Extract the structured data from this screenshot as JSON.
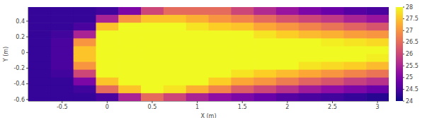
{
  "chart_data": {
    "type": "heatmap",
    "x_label": "X (m)",
    "y_label": "Y (m)",
    "color": "plasma",
    "xlim": [
      -0.875,
      3.125
    ],
    "ylim": [
      -0.62,
      0.58
    ],
    "xticks": [
      -0.5,
      0,
      0.5,
      1,
      1.5,
      2,
      2.5,
      3
    ],
    "yticks": [
      -0.6,
      -0.4,
      -0.2,
      0,
      0.2,
      0.4
    ],
    "x": [
      -0.75,
      -0.5,
      -0.25,
      0,
      0.25,
      0.5,
      0.75,
      1,
      1.25,
      1.5,
      1.75,
      2,
      2.25,
      2.5,
      2.75,
      3
    ],
    "y": [
      0.53,
      0.43,
      0.33,
      0.23,
      0.13,
      0.03,
      -0.07,
      -0.17,
      -0.27,
      -0.37,
      -0.47,
      -0.57
    ],
    "z": [
      [
        24.3,
        24.3,
        24.3,
        24.4,
        25,
        26,
        26.5,
        26.5,
        26.5,
        26,
        25.6,
        25.3,
        25,
        24.8,
        24.6,
        24.5
      ],
      [
        24.3,
        24.3,
        24.3,
        25.5,
        27,
        27.5,
        27.5,
        27.3,
        27,
        26.8,
        26.5,
        26.2,
        26,
        25.8,
        25.5,
        25.3
      ],
      [
        24.3,
        24.3,
        24.5,
        27.5,
        28,
        28,
        28,
        27.8,
        27.6,
        27.5,
        27.2,
        27,
        26.8,
        26.6,
        26.4,
        26.2
      ],
      [
        24.3,
        24.4,
        25.5,
        28,
        28,
        28,
        28,
        28,
        28,
        28,
        27.8,
        27.6,
        27.4,
        27.3,
        27.1,
        27
      ],
      [
        24.3,
        24.5,
        27,
        28,
        28,
        28,
        28,
        28,
        28,
        28,
        28,
        28,
        28,
        27.9,
        27.8,
        27.7
      ],
      [
        24.3,
        24.5,
        27.5,
        28,
        28,
        28,
        28,
        28,
        28,
        28,
        28,
        28,
        28,
        28,
        28,
        28
      ],
      [
        24.3,
        24.5,
        27.5,
        28,
        28,
        28,
        28,
        28,
        28,
        28,
        28,
        28,
        28,
        28,
        28,
        27.9
      ],
      [
        24.3,
        24.5,
        27,
        28,
        28,
        28,
        28,
        28,
        28,
        28,
        28,
        28,
        27.8,
        27.7,
        27.6,
        27.4
      ],
      [
        24.3,
        24.4,
        26,
        28,
        28,
        28,
        28,
        28,
        28,
        27.8,
        27.6,
        27.4,
        27.2,
        27,
        26.8,
        26.6
      ],
      [
        24.3,
        24.3,
        25,
        27.5,
        28,
        28,
        28,
        28,
        27.6,
        27.2,
        27,
        26.7,
        26.4,
        26.2,
        25.9,
        25.7
      ],
      [
        24.3,
        24.3,
        24.4,
        26.5,
        27.5,
        28,
        27.8,
        27.3,
        26.8,
        26.3,
        26,
        25.7,
        25.4,
        25.2,
        25,
        24.8
      ],
      [
        24.3,
        24.3,
        24.3,
        24.5,
        25.5,
        26.5,
        26,
        25.5,
        25.2,
        25,
        24.8,
        24.6,
        24.5,
        24.4,
        24.3,
        24.2
      ]
    ],
    "colorbar": {
      "range": [
        24,
        28
      ],
      "ticks": [
        24,
        24.5,
        25,
        25.5,
        26,
        26.5,
        27,
        27.5,
        28
      ]
    }
  }
}
